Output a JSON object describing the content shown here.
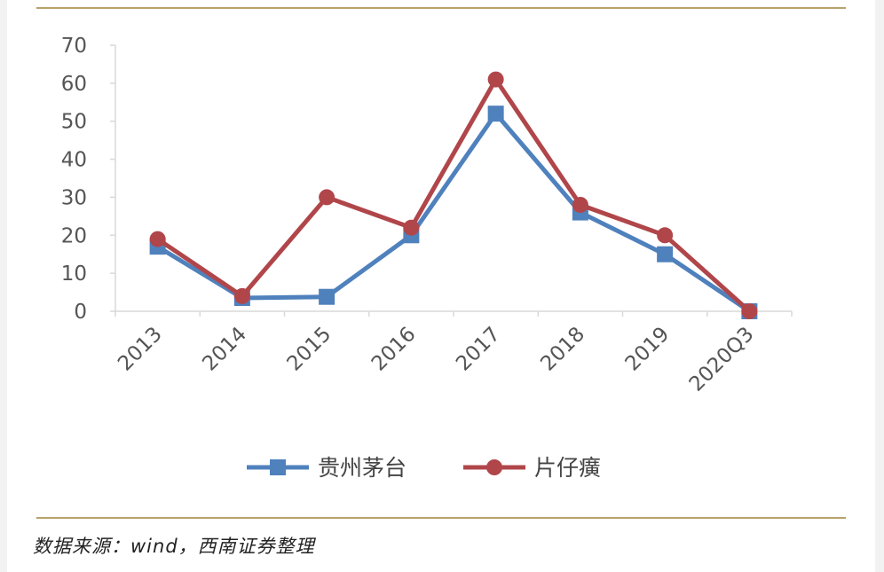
{
  "chart_data": {
    "type": "line",
    "categories": [
      "2013",
      "2014",
      "2015",
      "2016",
      "2017",
      "2018",
      "2019",
      "2020Q3"
    ],
    "ylim": [
      0,
      70
    ],
    "yticks": [
      0,
      10,
      20,
      30,
      40,
      50,
      60,
      70
    ],
    "grid": false,
    "legend_position": "bottom",
    "series": [
      {
        "name": "贵州茅台",
        "marker": "square",
        "color": "#4f81bd",
        "values": [
          17,
          3.5,
          3.8,
          20,
          52,
          26,
          15,
          0
        ]
      },
      {
        "name": "片仔癀",
        "marker": "circle",
        "color": "#b0464a",
        "values": [
          19,
          4,
          30,
          22,
          61,
          28,
          20,
          0
        ]
      }
    ]
  },
  "source_text": "数据来源：wind，西南证券整理"
}
